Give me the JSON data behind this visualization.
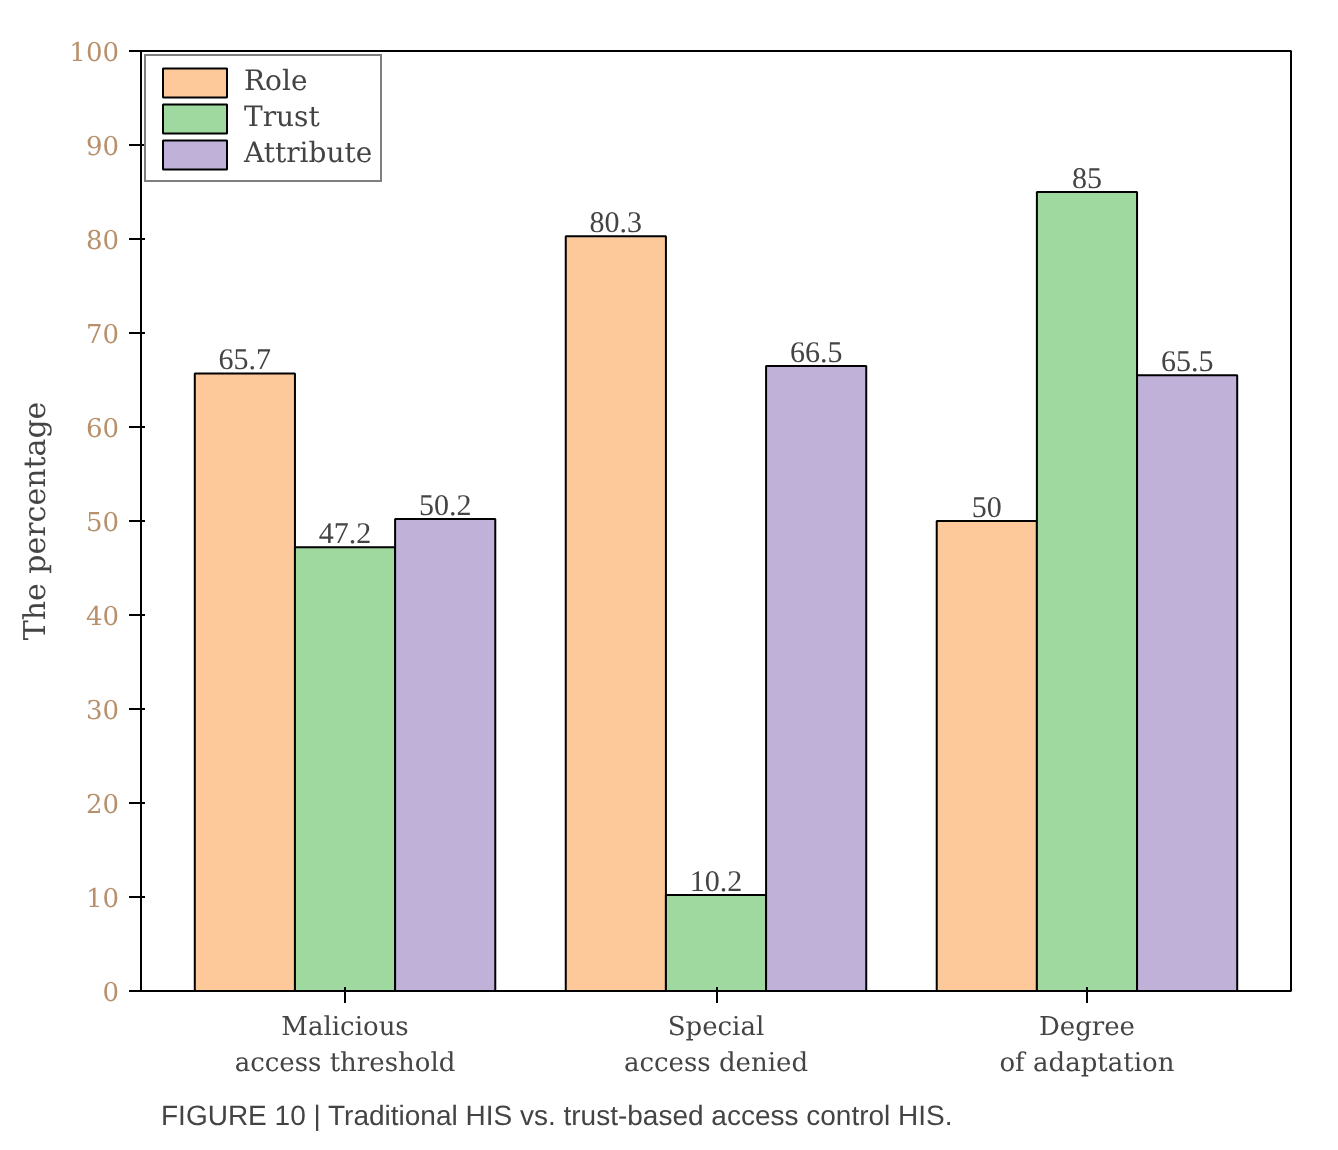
{
  "chart_data": {
    "type": "bar",
    "ylabel": "The percentage",
    "categories": [
      "Malicious\naccess threshold",
      "Special\naccess denied",
      "Degree\nof adaptation"
    ],
    "series": [
      {
        "name": "Role",
        "color": "#fdc99b",
        "values": [
          65.7,
          80.3,
          50
        ]
      },
      {
        "name": "Trust",
        "color": "#9fd99f",
        "values": [
          47.2,
          10.2,
          85
        ]
      },
      {
        "name": "Attribute",
        "color": "#c0b1d8",
        "values": [
          50.2,
          66.5,
          65.5
        ]
      }
    ],
    "ylim": [
      0,
      100
    ],
    "yticks": [
      0,
      10,
      20,
      30,
      40,
      50,
      60,
      70,
      80,
      90,
      100
    ],
    "data_labels": true,
    "legend": "top left",
    "grid": false,
    "annotations": [
      "FIGURE 10 | Traditional HIS vs. trust-based access control HIS."
    ]
  }
}
